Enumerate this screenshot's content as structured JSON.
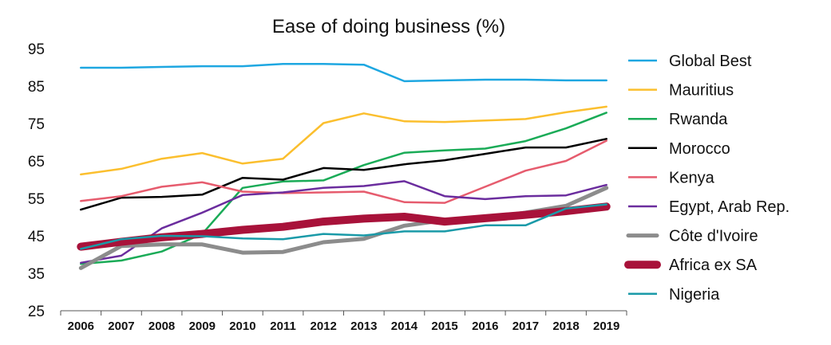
{
  "chart_data": {
    "type": "line",
    "title": "Ease of doing business (%)",
    "xlabel": "",
    "ylabel": "",
    "ylim": [
      25,
      95
    ],
    "yticks": [
      25,
      35,
      45,
      55,
      65,
      75,
      85,
      95
    ],
    "categories": [
      "2006",
      "2007",
      "2008",
      "2009",
      "2010",
      "2011",
      "2012",
      "2013",
      "2014",
      "2015",
      "2016",
      "2017",
      "2018",
      "2019"
    ],
    "grid": false,
    "legend_position": "right",
    "series": [
      {
        "name": "Global Best",
        "color": "#1ea7e1",
        "width": "thin",
        "values": [
          89.9,
          89.9,
          90.1,
          90.3,
          90.3,
          90.9,
          90.9,
          90.7,
          86.3,
          86.5,
          86.7,
          86.7,
          86.5,
          86.5
        ]
      },
      {
        "name": "Mauritius",
        "color": "#fbbf2e",
        "width": "thin",
        "values": [
          61.4,
          62.9,
          65.6,
          67.1,
          64.3,
          65.6,
          75.1,
          77.7,
          75.6,
          75.4,
          75.8,
          76.2,
          78.0,
          79.5
        ]
      },
      {
        "name": "Rwanda",
        "color": "#1aab57",
        "width": "thin",
        "values": [
          37.5,
          38.4,
          40.8,
          45.5,
          57.8,
          59.5,
          59.8,
          63.9,
          67.2,
          67.8,
          68.3,
          70.3,
          73.7,
          77.9
        ]
      },
      {
        "name": "Morocco",
        "color": "#000000",
        "width": "thin",
        "values": [
          52.0,
          55.2,
          55.4,
          56.0,
          60.5,
          60.0,
          63.1,
          62.6,
          64.1,
          65.2,
          66.9,
          68.6,
          68.6,
          70.9
        ]
      },
      {
        "name": "Kenya",
        "color": "#e65c6e",
        "width": "thin",
        "values": [
          54.3,
          55.6,
          58.1,
          59.3,
          56.8,
          56.4,
          56.6,
          56.8,
          54.0,
          53.8,
          58.1,
          62.4,
          65.0,
          70.4
        ]
      },
      {
        "name": "Egypt, Arab Rep.",
        "color": "#6b2d9e",
        "width": "thin",
        "values": [
          37.8,
          39.7,
          47.0,
          51.2,
          55.9,
          56.6,
          57.8,
          58.3,
          59.6,
          55.6,
          54.8,
          55.6,
          55.8,
          58.6
        ]
      },
      {
        "name": "Côte d'Ivoire",
        "color": "#8c8c8c",
        "width": "medium",
        "values": [
          36.4,
          42.3,
          42.7,
          42.7,
          40.5,
          40.7,
          43.3,
          44.2,
          47.7,
          49.2,
          49.7,
          51.2,
          53.0,
          57.8
        ]
      },
      {
        "name": "Africa ex SA",
        "color": "#a8123a",
        "width": "thick",
        "values": [
          42.1,
          43.4,
          44.6,
          45.5,
          46.6,
          47.4,
          48.8,
          49.6,
          50.1,
          48.8,
          49.7,
          50.6,
          51.6,
          52.8
        ]
      },
      {
        "name": "Nigeria",
        "color": "#1a9aa8",
        "width": "thin",
        "values": [
          41.5,
          44.1,
          45.0,
          44.9,
          44.3,
          44.1,
          45.5,
          45.1,
          46.2,
          46.2,
          47.8,
          47.8,
          52.3,
          53.4
        ]
      }
    ]
  }
}
